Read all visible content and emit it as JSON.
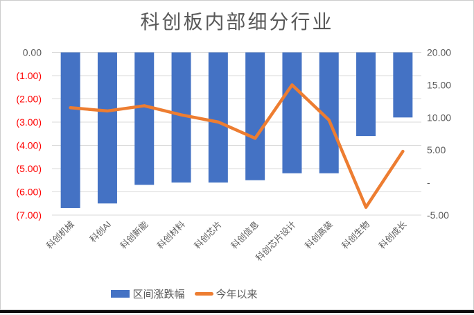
{
  "chart_data": {
    "type": "bar",
    "combo": "bar+line",
    "title": "科创板内部细分行业",
    "categories": [
      "科创机械",
      "科创AI",
      "科创新能",
      "科创材料",
      "科创芯片",
      "科创信息",
      "科创芯片设计",
      "科创高装",
      "科创生物",
      "科创成长"
    ],
    "series": [
      {
        "name": "区间涨跌幅",
        "type": "bar",
        "axis": "left",
        "color": "#4472C4",
        "values": [
          -6.7,
          -6.5,
          -5.7,
          -5.6,
          -5.6,
          -5.5,
          -5.2,
          -5.2,
          -3.6,
          -2.8
        ]
      },
      {
        "name": "今年以来",
        "type": "line",
        "axis": "right",
        "color": "#ED7D31",
        "values": [
          11.5,
          11.0,
          11.8,
          10.4,
          9.3,
          6.8,
          15.0,
          9.6,
          -3.8,
          4.8
        ]
      }
    ],
    "left_axis": {
      "min": -7,
      "max": 0,
      "step": 1,
      "tick_labels": [
        "0.00",
        "(1.00)",
        "(2.00)",
        "(3.00)",
        "(4.00)",
        "(5.00)",
        "(6.00)",
        "(7.00)"
      ],
      "zero_color": "#595959",
      "negative_color": "#FF0000"
    },
    "right_axis": {
      "min": -5,
      "max": 20,
      "step": 5,
      "tick_labels": [
        "20.00",
        "15.00",
        "10.00",
        "5.00",
        "-",
        "-5.00"
      ],
      "color": "#595959"
    },
    "grid": true,
    "grid_color": "#D9D9D9",
    "category_label_color": "#595959",
    "legend_position": "bottom"
  },
  "title_color": "#595959"
}
